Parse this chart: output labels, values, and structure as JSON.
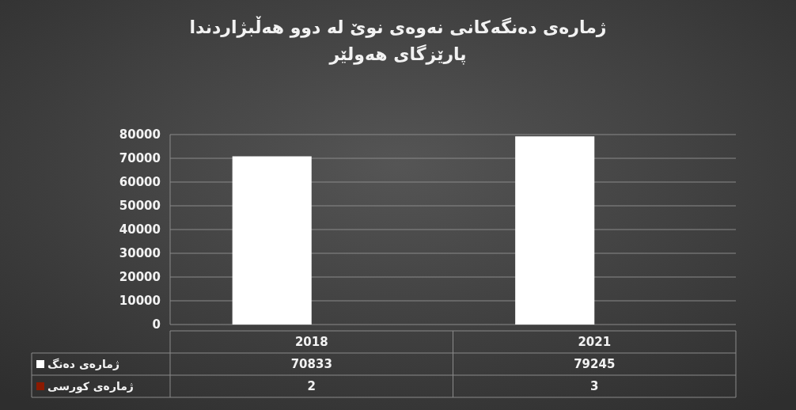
{
  "chart_data": {
    "type": "bar",
    "title": "ژمارەی دەنگەکانی نەوەی نوێ لە دوو هەڵبژاردندا",
    "subtitle": "پارێزگای هەولێر",
    "categories": [
      "2018",
      "2021"
    ],
    "series": [
      {
        "name": "ژمارەی دەنگ",
        "color": "#ffffff",
        "values": [
          70833,
          79245
        ]
      },
      {
        "name": "ژمارەی کورسی",
        "color": "#8b1a00",
        "values": [
          2,
          3
        ]
      }
    ],
    "ylim": [
      0,
      80000
    ],
    "yticks": [
      0,
      10000,
      20000,
      30000,
      40000,
      50000,
      60000,
      70000,
      80000
    ],
    "grid": true,
    "legend": "bottom",
    "data_labels": true
  }
}
